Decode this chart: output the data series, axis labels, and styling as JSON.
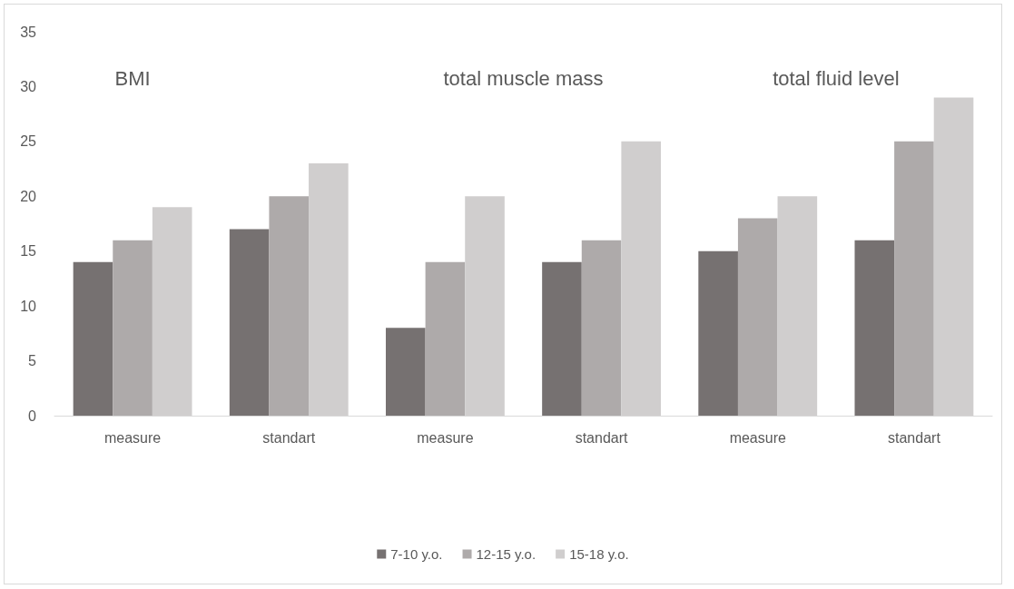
{
  "chart_data": {
    "type": "bar",
    "categories": [
      "measure",
      "standart",
      "measure",
      "standart",
      "measure",
      "standart"
    ],
    "series": [
      {
        "name": "7-10 y.o.",
        "color": "#767171",
        "values": [
          14,
          17,
          8,
          14,
          15,
          16
        ]
      },
      {
        "name": "12-15 y.o.",
        "color": "#aeaaaa",
        "values": [
          16,
          20,
          14,
          16,
          18,
          25
        ]
      },
      {
        "name": "15-18 y.o.",
        "color": "#d0cece",
        "values": [
          19,
          23,
          20,
          25,
          20,
          29
        ]
      }
    ],
    "annotations": [
      "BMI",
      "total muscle mass",
      "total fluid level"
    ],
    "ylim": [
      0,
      35
    ],
    "yticks": [
      0,
      5,
      10,
      15,
      20,
      25,
      30,
      35
    ],
    "grid": false,
    "legend": "bottom"
  }
}
